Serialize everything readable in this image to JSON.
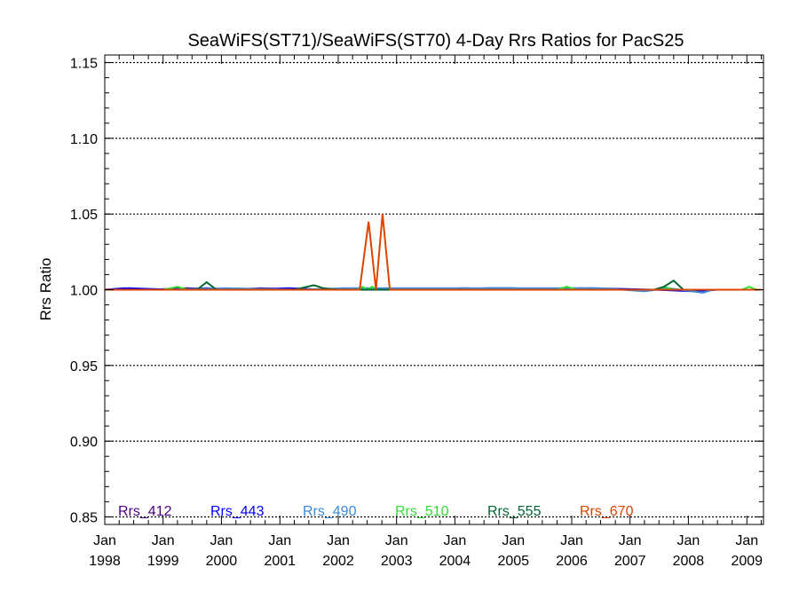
{
  "chart_data": {
    "type": "line",
    "title": "SeaWiFS(ST71)/SeaWiFS(ST70) 4-Day Rrs Ratios for PacS25",
    "xlabel": "",
    "ylabel": "Rrs Ratio",
    "xlim": [
      "1998-01-01",
      "2009-04-15"
    ],
    "ylim": [
      0.845,
      1.155
    ],
    "grid": "dotted horizontal",
    "legend_placement": "bottom",
    "y_ticks": [
      "0.85",
      "0.90",
      "0.95",
      "1.00",
      "1.05",
      "1.10",
      "1.15"
    ],
    "y_tick_values": [
      0.85,
      0.9,
      0.95,
      1.0,
      1.05,
      1.1,
      1.15
    ],
    "x_ticks": [
      {
        "month": "Jan",
        "year": "1998",
        "date": "1998-01-01"
      },
      {
        "month": "Jan",
        "year": "1999",
        "date": "1999-01-01"
      },
      {
        "month": "Jan",
        "year": "2000",
        "date": "2000-01-01"
      },
      {
        "month": "Jan",
        "year": "2001",
        "date": "2001-01-01"
      },
      {
        "month": "Jan",
        "year": "2002",
        "date": "2002-01-01"
      },
      {
        "month": "Jan",
        "year": "2003",
        "date": "2003-01-01"
      },
      {
        "month": "Jan",
        "year": "2004",
        "date": "2004-01-01"
      },
      {
        "month": "Jan",
        "year": "2005",
        "date": "2005-01-01"
      },
      {
        "month": "Jan",
        "year": "2006",
        "date": "2006-01-01"
      },
      {
        "month": "Jan",
        "year": "2007",
        "date": "2007-01-01"
      },
      {
        "month": "Jan",
        "year": "2008",
        "date": "2008-01-01"
      },
      {
        "month": "Jan",
        "year": "2009",
        "date": "2009-01-01"
      }
    ],
    "series": [
      {
        "name": "Rrs_412",
        "color": "#4b0082",
        "points": [
          [
            "1998-01-01",
            1.0
          ],
          [
            "1998-05-01",
            1.001
          ],
          [
            "1998-10-01",
            1.0
          ],
          [
            "1999-06-01",
            1.001
          ],
          [
            "2000-03-01",
            1.0
          ],
          [
            "2000-09-01",
            1.001
          ],
          [
            "2001-06-01",
            1.0
          ],
          [
            "2002-03-01",
            1.0
          ],
          [
            "2003-01-01",
            1.0
          ],
          [
            "2004-03-01",
            1.001
          ],
          [
            "2005-03-01",
            1.0
          ],
          [
            "2006-03-01",
            1.001
          ],
          [
            "2007-03-01",
            1.0
          ],
          [
            "2008-03-01",
            1.0
          ],
          [
            "2009-04-01",
            1.0
          ]
        ]
      },
      {
        "name": "Rrs_443",
        "color": "#0000ff",
        "points": [
          [
            "1998-01-01",
            1.0
          ],
          [
            "1998-06-01",
            1.001
          ],
          [
            "1999-03-01",
            1.0
          ],
          [
            "1999-10-01",
            1.001
          ],
          [
            "2000-05-01",
            1.0
          ],
          [
            "2001-03-01",
            1.001
          ],
          [
            "2001-10-01",
            1.0
          ],
          [
            "2002-06-01",
            1.001
          ],
          [
            "2003-04-01",
            1.0
          ],
          [
            "2004-08-01",
            1.001
          ],
          [
            "2005-01-01",
            1.001
          ],
          [
            "2005-07-01",
            1.0
          ],
          [
            "2006-05-01",
            1.001
          ],
          [
            "2007-06-01",
            1.0
          ],
          [
            "2008-02-01",
            0.999
          ],
          [
            "2008-07-01",
            1.0
          ],
          [
            "2009-04-01",
            1.0
          ]
        ]
      },
      {
        "name": "Rrs_490",
        "color": "#3a8ad6",
        "points": [
          [
            "1998-01-01",
            1.0
          ],
          [
            "1999-02-01",
            1.0
          ],
          [
            "2000-02-01",
            1.001
          ],
          [
            "2001-05-01",
            1.0
          ],
          [
            "2002-02-01",
            1.001
          ],
          [
            "2003-01-15",
            1.001
          ],
          [
            "2004-06-01",
            1.001
          ],
          [
            "2005-05-01",
            1.001
          ],
          [
            "2006-07-01",
            1.001
          ],
          [
            "2007-04-01",
            0.999
          ],
          [
            "2007-09-01",
            1.001
          ],
          [
            "2008-04-01",
            0.998
          ],
          [
            "2008-06-01",
            1.0
          ],
          [
            "2009-04-01",
            1.0
          ]
        ]
      },
      {
        "name": "Rrs_510",
        "color": "#33dd33",
        "points": [
          [
            "1998-01-01",
            1.0
          ],
          [
            "1999-01-01",
            1.0
          ],
          [
            "1999-04-01",
            1.002
          ],
          [
            "1999-06-01",
            1.0
          ],
          [
            "2001-01-01",
            1.0
          ],
          [
            "2002-05-01",
            1.0
          ],
          [
            "2002-06-01",
            1.002
          ],
          [
            "2002-07-01",
            1.0
          ],
          [
            "2002-08-01",
            1.002
          ],
          [
            "2002-09-01",
            1.0
          ],
          [
            "2005-10-01",
            1.0
          ],
          [
            "2005-12-01",
            1.002
          ],
          [
            "2006-02-01",
            1.0
          ],
          [
            "2007-07-01",
            1.0
          ],
          [
            "2007-08-01",
            1.002
          ],
          [
            "2007-10-01",
            1.0
          ],
          [
            "2008-12-01",
            1.0
          ],
          [
            "2009-01-15",
            1.002
          ],
          [
            "2009-03-01",
            1.0
          ],
          [
            "2009-04-01",
            1.0
          ]
        ]
      },
      {
        "name": "Rrs_555",
        "color": "#006633",
        "points": [
          [
            "1998-01-01",
            1.0
          ],
          [
            "1999-08-01",
            1.0
          ],
          [
            "1999-10-01",
            1.005
          ],
          [
            "1999-12-01",
            1.0
          ],
          [
            "2001-04-01",
            1.0
          ],
          [
            "2001-08-01",
            1.003
          ],
          [
            "2001-10-01",
            1.001
          ],
          [
            "2002-01-01",
            1.0
          ],
          [
            "2007-06-01",
            1.0
          ],
          [
            "2007-08-01",
            1.002
          ],
          [
            "2007-10-01",
            1.006
          ],
          [
            "2007-12-01",
            1.0
          ],
          [
            "2009-04-01",
            1.0
          ]
        ]
      },
      {
        "name": "Rrs_670",
        "color": "#dd4400",
        "points": [
          [
            "1998-01-01",
            1.0
          ],
          [
            "2002-05-15",
            1.0
          ],
          [
            "2002-07-10",
            1.045
          ],
          [
            "2002-08-25",
            1.0
          ],
          [
            "2002-10-05",
            1.05
          ],
          [
            "2002-11-20",
            1.0
          ],
          [
            "2009-04-01",
            1.0
          ]
        ]
      }
    ]
  }
}
